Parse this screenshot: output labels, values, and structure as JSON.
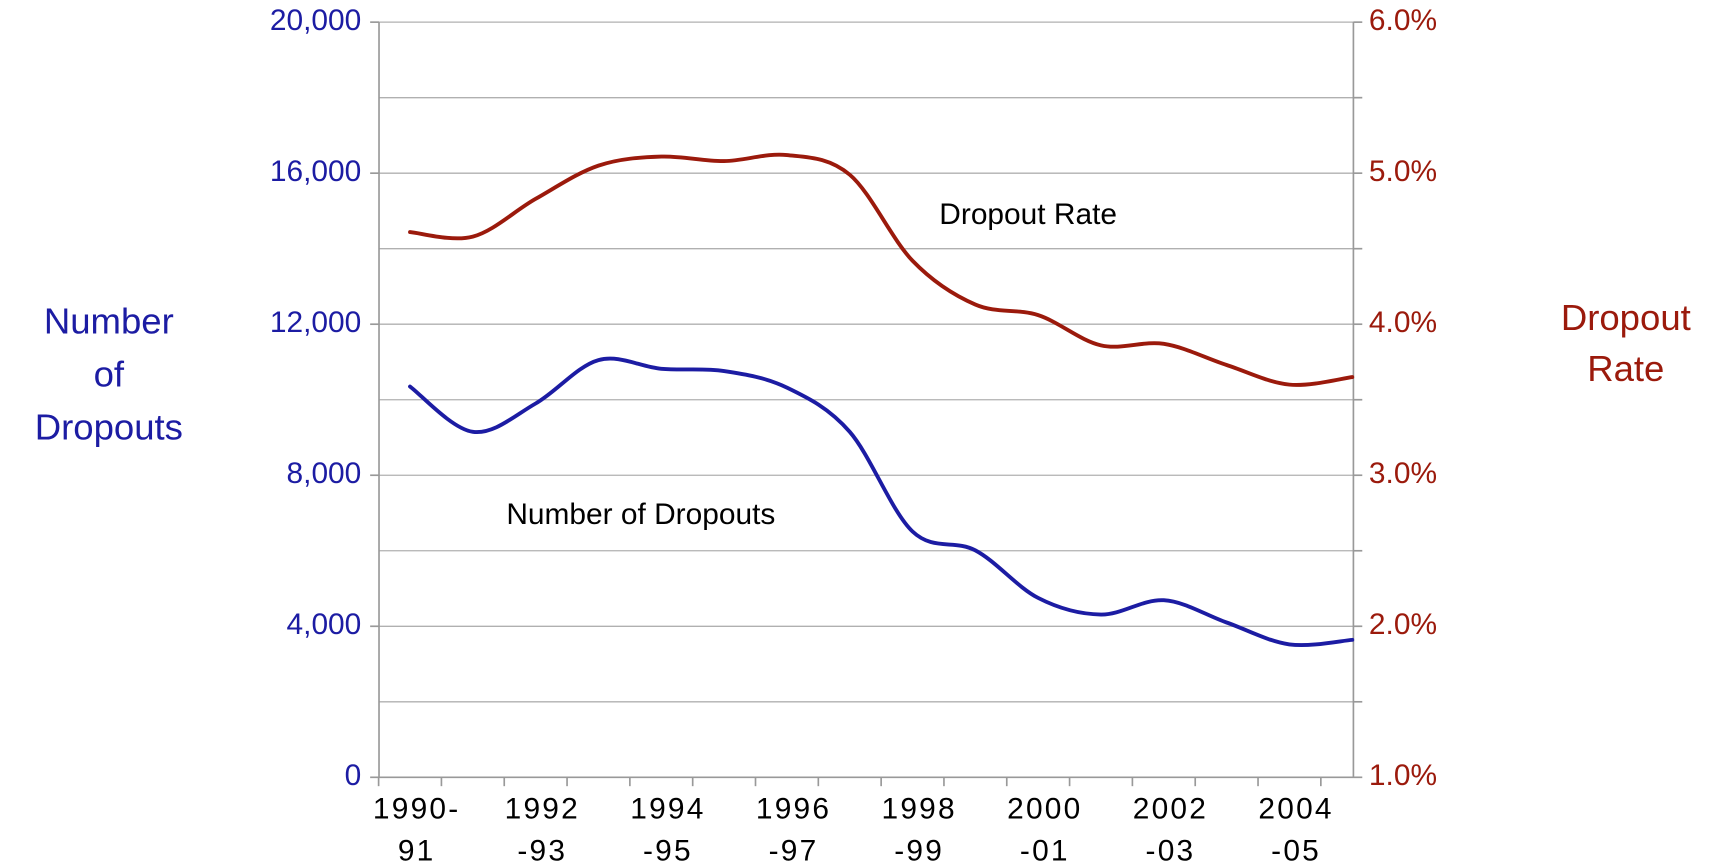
{
  "chart_data": {
    "type": "line",
    "categories": [
      "1990-\n91",
      null,
      "1992\n-93",
      null,
      "1994\n-95",
      null,
      "1996\n-97",
      null,
      "1998\n-99",
      null,
      "2000\n-01",
      null,
      "2002\n-03",
      null,
      "2004\n-05",
      null
    ],
    "series": [
      {
        "name": "Number of Dropouts",
        "color": "#1c1ca3",
        "axis": "y",
        "values": [
          10350,
          9150,
          9900,
          11050,
          10820,
          10760,
          10320,
          9150,
          6510,
          6010,
          4750,
          4310,
          4690,
          4100,
          3520,
          3640
        ]
      },
      {
        "name": "Dropout Rate",
        "color": "#9b1a0c",
        "axis": "y2",
        "values": [
          4.61,
          4.58,
          4.83,
          5.05,
          5.11,
          5.08,
          5.12,
          4.99,
          4.42,
          4.13,
          4.06,
          3.86,
          3.87,
          3.73,
          3.6,
          3.65
        ]
      }
    ],
    "ylabel": "Number\nof\nDropouts",
    "y2label": "Dropout\nRate",
    "ylim": [
      0,
      20000
    ],
    "yticks": [
      0,
      {
        "value": 4000,
        "label": "4,000"
      },
      {
        "value": 8000,
        "label": "8,000"
      },
      {
        "value": 12000,
        "label": "12,000"
      },
      {
        "value": 16000,
        "label": "16,000"
      },
      {
        "value": 20000,
        "label": "20,000"
      }
    ],
    "y2lim": [
      1,
      6
    ],
    "y2ticks": [
      {
        "value": 1,
        "label": "1.0%"
      },
      {
        "value": 2,
        "label": "2.0%"
      },
      {
        "value": 3,
        "label": "3.0%"
      },
      {
        "value": 4,
        "label": "4.0%"
      },
      {
        "value": 5,
        "label": "5.0%"
      },
      {
        "value": 6,
        "label": "6.0%"
      }
    ],
    "grid": true
  }
}
